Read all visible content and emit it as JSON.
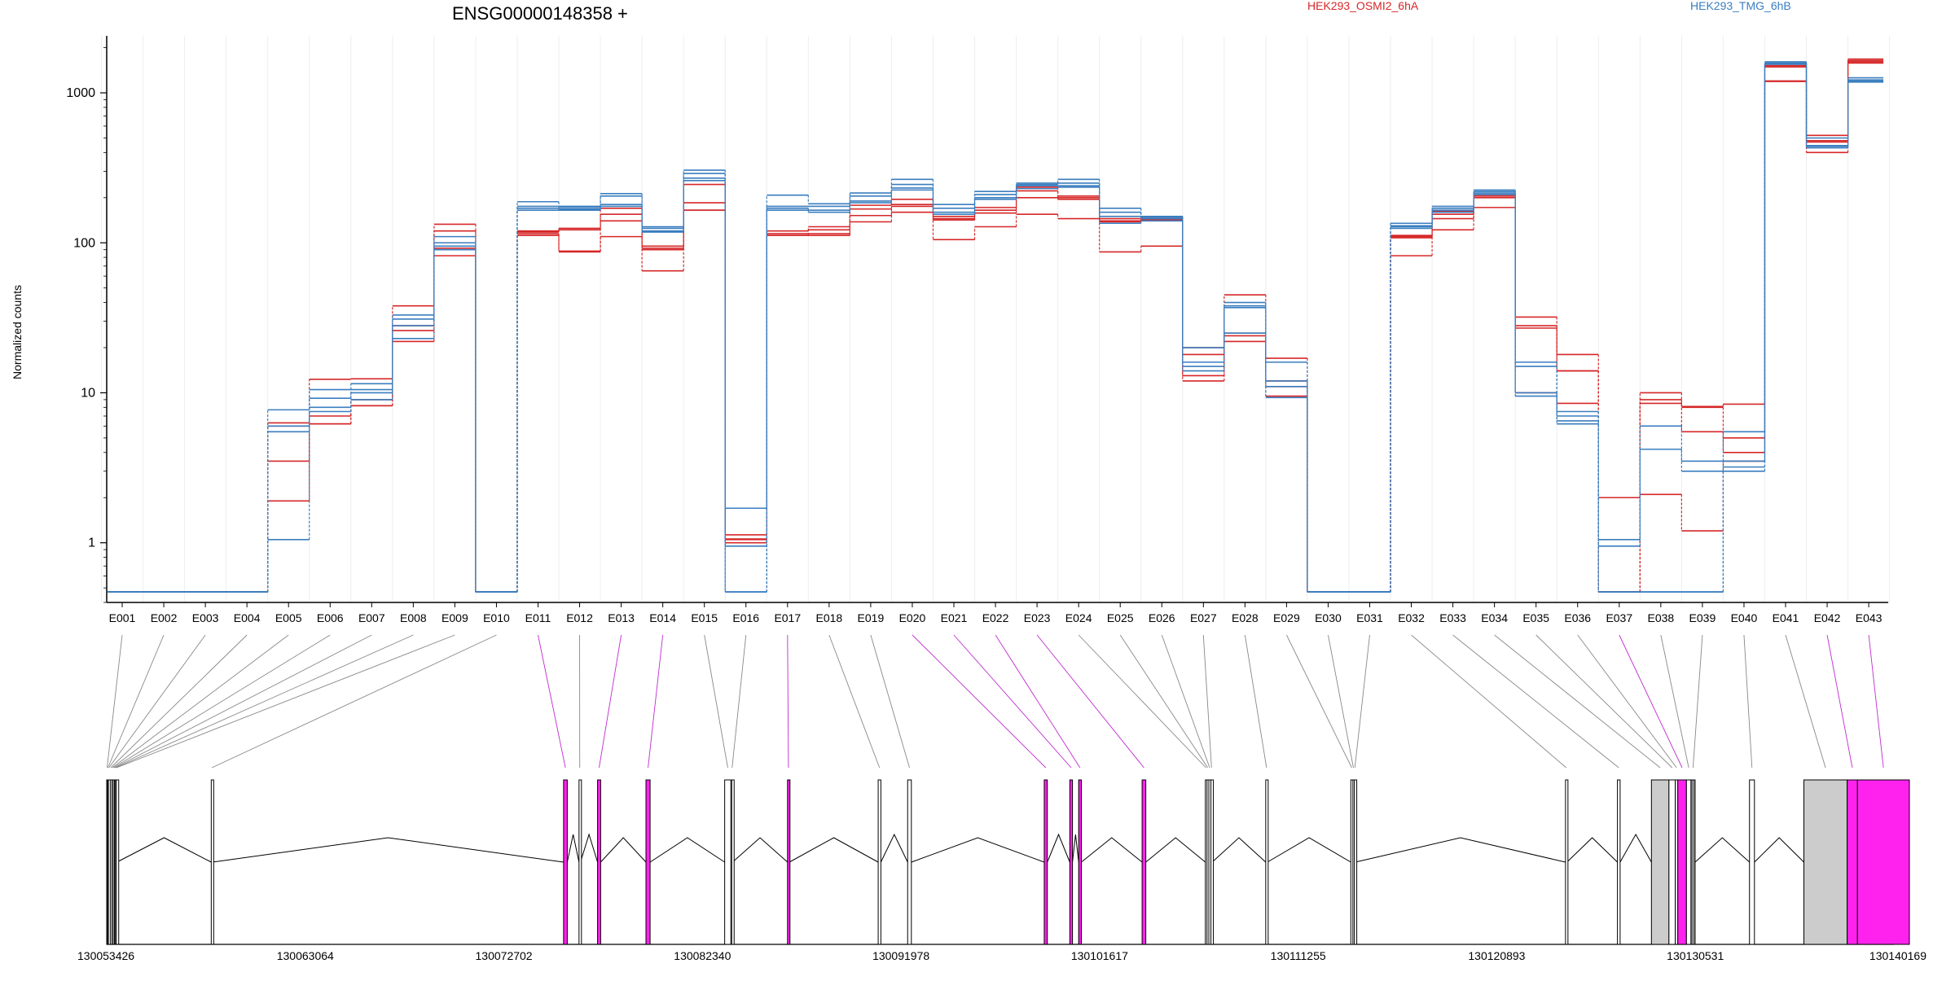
{
  "chart_data": {
    "type": "line",
    "title": "ENSG00000148358 +",
    "ylabel": "Normalized counts",
    "yscale": "log",
    "ylim": [
      0.4,
      2400
    ],
    "y_ticks": [
      {
        "value": 1,
        "label": "1"
      },
      {
        "value": 10,
        "label": "10"
      },
      {
        "value": 100,
        "label": "100"
      },
      {
        "value": 1000,
        "label": "1000"
      }
    ],
    "legend": [
      {
        "name": "HEK293_OSMI2_6hA",
        "color": "#d62728"
      },
      {
        "name": "HEK293_TMG_6hB",
        "color": "#3a7ebf"
      }
    ],
    "categories": [
      "E001",
      "E002",
      "E003",
      "E004",
      "E005",
      "E006",
      "E007",
      "E008",
      "E009",
      "E010",
      "E011",
      "E012",
      "E013",
      "E014",
      "E015",
      "E016",
      "E017",
      "E018",
      "E019",
      "E020",
      "E021",
      "E022",
      "E023",
      "E024",
      "E025",
      "E026",
      "E027",
      "E028",
      "E029",
      "E030",
      "E031",
      "E032",
      "E033",
      "E034",
      "E035",
      "E036",
      "E037",
      "E038",
      "E039",
      "E040",
      "E041",
      "E042",
      "E043"
    ],
    "series": [
      {
        "group": "HEK293_OSMI2_6hA",
        "color": "#d62728",
        "values": [
          0.47,
          0.47,
          0.47,
          0.47,
          6.0,
          12.3,
          12.4,
          38,
          133,
          0.47,
          120,
          125,
          170,
          95,
          245,
          1.13,
          120,
          128,
          178,
          195,
          150,
          172,
          235,
          205,
          145,
          150,
          20,
          45,
          17,
          0.47,
          0.47,
          112,
          162,
          210,
          32,
          18,
          2.0,
          10,
          8.1,
          8.4,
          1520,
          520,
          1680
        ]
      },
      {
        "group": "HEK293_OSMI2_6hA",
        "color": "#d62728",
        "values": [
          0.47,
          0.47,
          0.47,
          0.47,
          3.5,
          7.0,
          9.0,
          28,
          120,
          0.47,
          118,
          122,
          155,
          92,
          185,
          1.05,
          112,
          122,
          168,
          180,
          145,
          165,
          222,
          200,
          140,
          145,
          18,
          25,
          12,
          0.47,
          0.47,
          108,
          155,
          205,
          27,
          14,
          0.47,
          9.0,
          5.5,
          5.0,
          1490,
          480,
          1610
        ]
      },
      {
        "group": "HEK293_OSMI2_6hA",
        "color": "#d62728",
        "values": [
          0.47,
          0.47,
          0.47,
          0.47,
          1.9,
          6.2,
          8.2,
          26,
          92,
          0.47,
          115,
          88,
          140,
          90,
          165,
          1.0,
          112,
          115,
          152,
          175,
          142,
          158,
          200,
          195,
          138,
          142,
          13,
          24,
          11,
          0.47,
          0.47,
          110,
          145,
          200,
          28,
          14,
          0.47,
          8.5,
          8.0,
          4.0,
          1200,
          470,
          1580
        ]
      },
      {
        "group": "HEK293_OSMI2_6hA",
        "color": "#d62728",
        "values": [
          0.47,
          0.47,
          0.47,
          0.47,
          6.3,
          6.2,
          8.2,
          22,
          82,
          0.47,
          112,
          87,
          110,
          65,
          165,
          1.06,
          115,
          112,
          138,
          160,
          105,
          128,
          155,
          145,
          87,
          95,
          12,
          22,
          9.5,
          0.47,
          0.47,
          82,
          122,
          172,
          10,
          8.5,
          2.0,
          2.1,
          1.2,
          3.5,
          1190,
          400,
          1640
        ]
      },
      {
        "group": "HEK293_TMG_6hB",
        "color": "#3a7ebf",
        "values": [
          0.47,
          0.47,
          0.47,
          0.47,
          7.7,
          10.5,
          11.5,
          33,
          110,
          0.47,
          188,
          175,
          213,
          128,
          305,
          1.7,
          208,
          182,
          215,
          265,
          180,
          220,
          250,
          265,
          170,
          150,
          20,
          40,
          16,
          0.47,
          0.47,
          135,
          175,
          225,
          16,
          7.5,
          1.05,
          6.0,
          3.5,
          5.5,
          1610,
          500,
          1260
        ]
      },
      {
        "group": "HEK293_TMG_6hB",
        "color": "#3a7ebf",
        "values": [
          0.47,
          0.47,
          0.47,
          0.47,
          1.05,
          9.2,
          10.5,
          31,
          100,
          0.47,
          175,
          172,
          205,
          125,
          290,
          0.95,
          175,
          175,
          205,
          245,
          170,
          210,
          245,
          250,
          160,
          148,
          16,
          38,
          12,
          0.47,
          0.47,
          130,
          170,
          220,
          15,
          7.0,
          0.95,
          4.2,
          3.0,
          3.5,
          1580,
          445,
          1220
        ]
      },
      {
        "group": "HEK293_TMG_6hB",
        "color": "#3a7ebf",
        "values": [
          0.47,
          0.47,
          0.47,
          0.47,
          6.0,
          8.0,
          10.0,
          28,
          95,
          0.47,
          165,
          168,
          180,
          120,
          270,
          0.47,
          170,
          165,
          190,
          232,
          160,
          200,
          240,
          240,
          150,
          145,
          15,
          37,
          11,
          0.47,
          0.47,
          128,
          165,
          215,
          10,
          6.5,
          0.47,
          0.47,
          0.47,
          3.0,
          1560,
          430,
          1200
        ]
      },
      {
        "group": "HEK293_TMG_6hB",
        "color": "#3a7ebf",
        "values": [
          0.47,
          0.47,
          0.47,
          0.47,
          5.5,
          7.5,
          9.0,
          23,
          90,
          0.47,
          170,
          165,
          175,
          118,
          260,
          0.47,
          165,
          160,
          185,
          225,
          155,
          195,
          230,
          235,
          135,
          140,
          14,
          25,
          9.3,
          0.47,
          0.47,
          125,
          160,
          210,
          9.5,
          6.2,
          0.47,
          0.47,
          0.47,
          3.2,
          1550,
          440,
          1180
        ]
      }
    ],
    "gene_model": {
      "coordinate_labels": [
        "130053426",
        "130063064",
        "130072702",
        "130082340",
        "130091978",
        "130101617",
        "130111255",
        "130120893",
        "130130531",
        "130140169"
      ],
      "coord_range": [
        130053426,
        130140169
      ],
      "exons": [
        {
          "id": "E001",
          "start": 130053426,
          "end": 130053460,
          "color": "#ffffff"
        },
        {
          "id": "E002",
          "start": 130053470,
          "end": 130053500,
          "color": "#ffffff"
        },
        {
          "id": "E003",
          "start": 130053505,
          "end": 130053560,
          "color": "#ffffff"
        },
        {
          "id": "E004",
          "start": 130053600,
          "end": 130053650,
          "color": "#ffffff"
        },
        {
          "id": "E005",
          "start": 130053680,
          "end": 130053720,
          "color": "#ffffff"
        },
        {
          "id": "E006",
          "start": 130053740,
          "end": 130053780,
          "color": "#ffffff"
        },
        {
          "id": "E007",
          "start": 130053800,
          "end": 130053830,
          "color": "#ffffff"
        },
        {
          "id": "E008",
          "start": 130053850,
          "end": 130053880,
          "color": "#ffffff"
        },
        {
          "id": "E009",
          "start": 130053890,
          "end": 130053920,
          "color": "#ffffff"
        },
        {
          "id": "E010",
          "start": 130058500,
          "end": 130058560,
          "color": "#ffffff"
        },
        {
          "id": "E011",
          "start": 130075600,
          "end": 130075780,
          "color": "#ff22ee"
        },
        {
          "id": "E012",
          "start": 130076350,
          "end": 130076420,
          "color": "#ffffff"
        },
        {
          "id": "E013",
          "start": 130077250,
          "end": 130077400,
          "color": "#ff22ee"
        },
        {
          "id": "E014",
          "start": 130079600,
          "end": 130079800,
          "color": "#ff22ee"
        },
        {
          "id": "E015",
          "start": 130083420,
          "end": 130083720,
          "color": "#ffffff"
        },
        {
          "id": "E016",
          "start": 130083760,
          "end": 130083800,
          "color": "#ffffff"
        },
        {
          "id": "E017",
          "start": 130086470,
          "end": 130086560,
          "color": "#ff22ee"
        },
        {
          "id": "E018",
          "start": 130090870,
          "end": 130091000,
          "color": "#ffffff"
        },
        {
          "id": "E019",
          "start": 130092300,
          "end": 130092480,
          "color": "#ffffff"
        },
        {
          "id": "E020",
          "start": 130098930,
          "end": 130099080,
          "color": "#ff22ee"
        },
        {
          "id": "E021",
          "start": 130100170,
          "end": 130100300,
          "color": "#ff22ee"
        },
        {
          "id": "E022",
          "start": 130100600,
          "end": 130100730,
          "color": "#ff22ee"
        },
        {
          "id": "E023",
          "start": 130103680,
          "end": 130103860,
          "color": "#ff22ee"
        },
        {
          "id": "E024",
          "start": 130106750,
          "end": 130106810,
          "color": "#ffffff"
        },
        {
          "id": "E025",
          "start": 130106830,
          "end": 130106900,
          "color": "#ffffff"
        },
        {
          "id": "E026",
          "start": 130106920,
          "end": 130107000,
          "color": "#ffffff"
        },
        {
          "id": "E027",
          "start": 130107020,
          "end": 130107080,
          "color": "#ffffff"
        },
        {
          "id": "E028",
          "start": 130109680,
          "end": 130109760,
          "color": "#ffffff"
        },
        {
          "id": "E029",
          "start": 130113810,
          "end": 130113900,
          "color": "#ffffff"
        },
        {
          "id": "E030",
          "start": 130113910,
          "end": 130113960,
          "color": "#ffffff"
        },
        {
          "id": "E031",
          "start": 130113980,
          "end": 130114030,
          "color": "#ffffff"
        },
        {
          "id": "E032",
          "start": 130124230,
          "end": 130124300,
          "color": "#ffffff"
        },
        {
          "id": "E033",
          "start": 130126750,
          "end": 130126880,
          "color": "#ffffff"
        },
        {
          "id": "E034",
          "start": 130128400,
          "end": 130129250,
          "color": "#cccccc"
        },
        {
          "id": "E035",
          "start": 130129250,
          "end": 130129560,
          "color": "#ffffff"
        },
        {
          "id": "E036",
          "start": 130129560,
          "end": 130129680,
          "color": "#ffffff"
        },
        {
          "id": "E037",
          "start": 130129680,
          "end": 130130100,
          "color": "#ff22ee"
        },
        {
          "id": "E038",
          "start": 130130100,
          "end": 130130320,
          "color": "#ffffff"
        },
        {
          "id": "E039",
          "start": 130130320,
          "end": 130130520,
          "color": "#888888"
        },
        {
          "id": "E040",
          "start": 130133160,
          "end": 130133400,
          "color": "#ffffff"
        },
        {
          "id": "E041",
          "start": 130135800,
          "end": 130137900,
          "color": "#cccccc"
        },
        {
          "id": "E042",
          "start": 130137900,
          "end": 130138400,
          "color": "#ff22ee"
        },
        {
          "id": "E043",
          "start": 130138400,
          "end": 130140920,
          "color": "#ff22ee"
        }
      ]
    }
  }
}
